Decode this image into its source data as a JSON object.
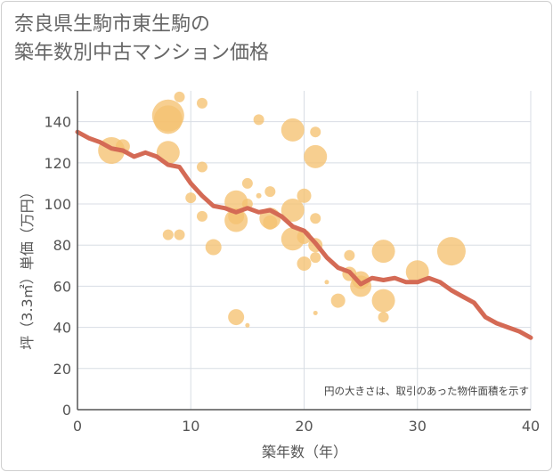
{
  "title_lines": [
    "奈良県生駒市東生駒の",
    "築年数別中古マンション価格"
  ],
  "chart_data": {
    "type": "scatter",
    "xlabel": "築年数（年）",
    "ylabel": "坪（3.3㎡）単価（万円）",
    "xlim": [
      0,
      40
    ],
    "ylim": [
      0,
      155
    ],
    "x_ticks": [
      0,
      10,
      20,
      30,
      40
    ],
    "y_ticks": [
      0,
      20,
      40,
      60,
      80,
      100,
      120,
      140
    ],
    "grid": true,
    "note": "円の大きさは、取引のあった物件面積を示す",
    "colors": {
      "bubble": "#f5c271",
      "trend": "#d46a55",
      "grid": "#d8dde4",
      "axis": "#555555"
    },
    "scatter_points": [
      {
        "x": 3,
        "y": 126,
        "s": 15
      },
      {
        "x": 4,
        "y": 128,
        "s": 8
      },
      {
        "x": 8,
        "y": 143,
        "s": 18
      },
      {
        "x": 8,
        "y": 141,
        "s": 16
      },
      {
        "x": 8,
        "y": 125,
        "s": 13
      },
      {
        "x": 8,
        "y": 85,
        "s": 6
      },
      {
        "x": 9,
        "y": 152,
        "s": 6
      },
      {
        "x": 9,
        "y": 85,
        "s": 6
      },
      {
        "x": 10,
        "y": 103,
        "s": 6
      },
      {
        "x": 11,
        "y": 149,
        "s": 6
      },
      {
        "x": 11,
        "y": 118,
        "s": 6
      },
      {
        "x": 11,
        "y": 94,
        "s": 6
      },
      {
        "x": 12,
        "y": 79,
        "s": 9
      },
      {
        "x": 14,
        "y": 101,
        "s": 13
      },
      {
        "x": 14,
        "y": 94,
        "s": 9
      },
      {
        "x": 14,
        "y": 92,
        "s": 13
      },
      {
        "x": 14,
        "y": 45,
        "s": 9
      },
      {
        "x": 15,
        "y": 110,
        "s": 6
      },
      {
        "x": 15,
        "y": 100,
        "s": 6
      },
      {
        "x": 15,
        "y": 41,
        "s": 2.5
      },
      {
        "x": 16,
        "y": 141,
        "s": 6
      },
      {
        "x": 16,
        "y": 104,
        "s": 3
      },
      {
        "x": 17,
        "y": 106,
        "s": 6
      },
      {
        "x": 17,
        "y": 93,
        "s": 12
      },
      {
        "x": 17,
        "y": 91,
        "s": 8
      },
      {
        "x": 19,
        "y": 136,
        "s": 13
      },
      {
        "x": 19,
        "y": 97,
        "s": 13
      },
      {
        "x": 19,
        "y": 83,
        "s": 13
      },
      {
        "x": 20,
        "y": 104,
        "s": 8
      },
      {
        "x": 20,
        "y": 84,
        "s": 8
      },
      {
        "x": 20,
        "y": 71,
        "s": 8
      },
      {
        "x": 21,
        "y": 135,
        "s": 6
      },
      {
        "x": 21,
        "y": 123,
        "s": 13
      },
      {
        "x": 21,
        "y": 93,
        "s": 6
      },
      {
        "x": 21,
        "y": 80,
        "s": 8
      },
      {
        "x": 21,
        "y": 74,
        "s": 6
      },
      {
        "x": 21,
        "y": 47,
        "s": 2.5
      },
      {
        "x": 22,
        "y": 62,
        "s": 2.5
      },
      {
        "x": 23,
        "y": 53,
        "s": 8
      },
      {
        "x": 24,
        "y": 75,
        "s": 6
      },
      {
        "x": 24,
        "y": 66,
        "s": 8
      },
      {
        "x": 25,
        "y": 63,
        "s": 10
      },
      {
        "x": 25,
        "y": 60,
        "s": 12
      },
      {
        "x": 27,
        "y": 77,
        "s": 13
      },
      {
        "x": 27,
        "y": 53,
        "s": 13
      },
      {
        "x": 27,
        "y": 45,
        "s": 6
      },
      {
        "x": 30,
        "y": 67,
        "s": 13
      },
      {
        "x": 33,
        "y": 77,
        "s": 16
      }
    ],
    "trend_line": {
      "x": [
        0,
        1,
        2,
        3,
        4,
        5,
        6,
        7,
        8,
        9,
        10,
        11,
        12,
        13,
        14,
        15,
        16,
        17,
        18,
        19,
        20,
        21,
        22,
        23,
        24,
        25,
        26,
        27,
        28,
        29,
        30,
        31,
        32,
        33,
        34,
        35,
        36,
        37,
        38,
        39,
        40
      ],
      "y": [
        135,
        132,
        130,
        127,
        126,
        123,
        125,
        123,
        119,
        118,
        110,
        104,
        99,
        98,
        96,
        98,
        96,
        97,
        94,
        89,
        87,
        81,
        74,
        69,
        67,
        61,
        64,
        63,
        64,
        62,
        62,
        64,
        62,
        58,
        55,
        52,
        45,
        42,
        40,
        38,
        35
      ]
    }
  }
}
